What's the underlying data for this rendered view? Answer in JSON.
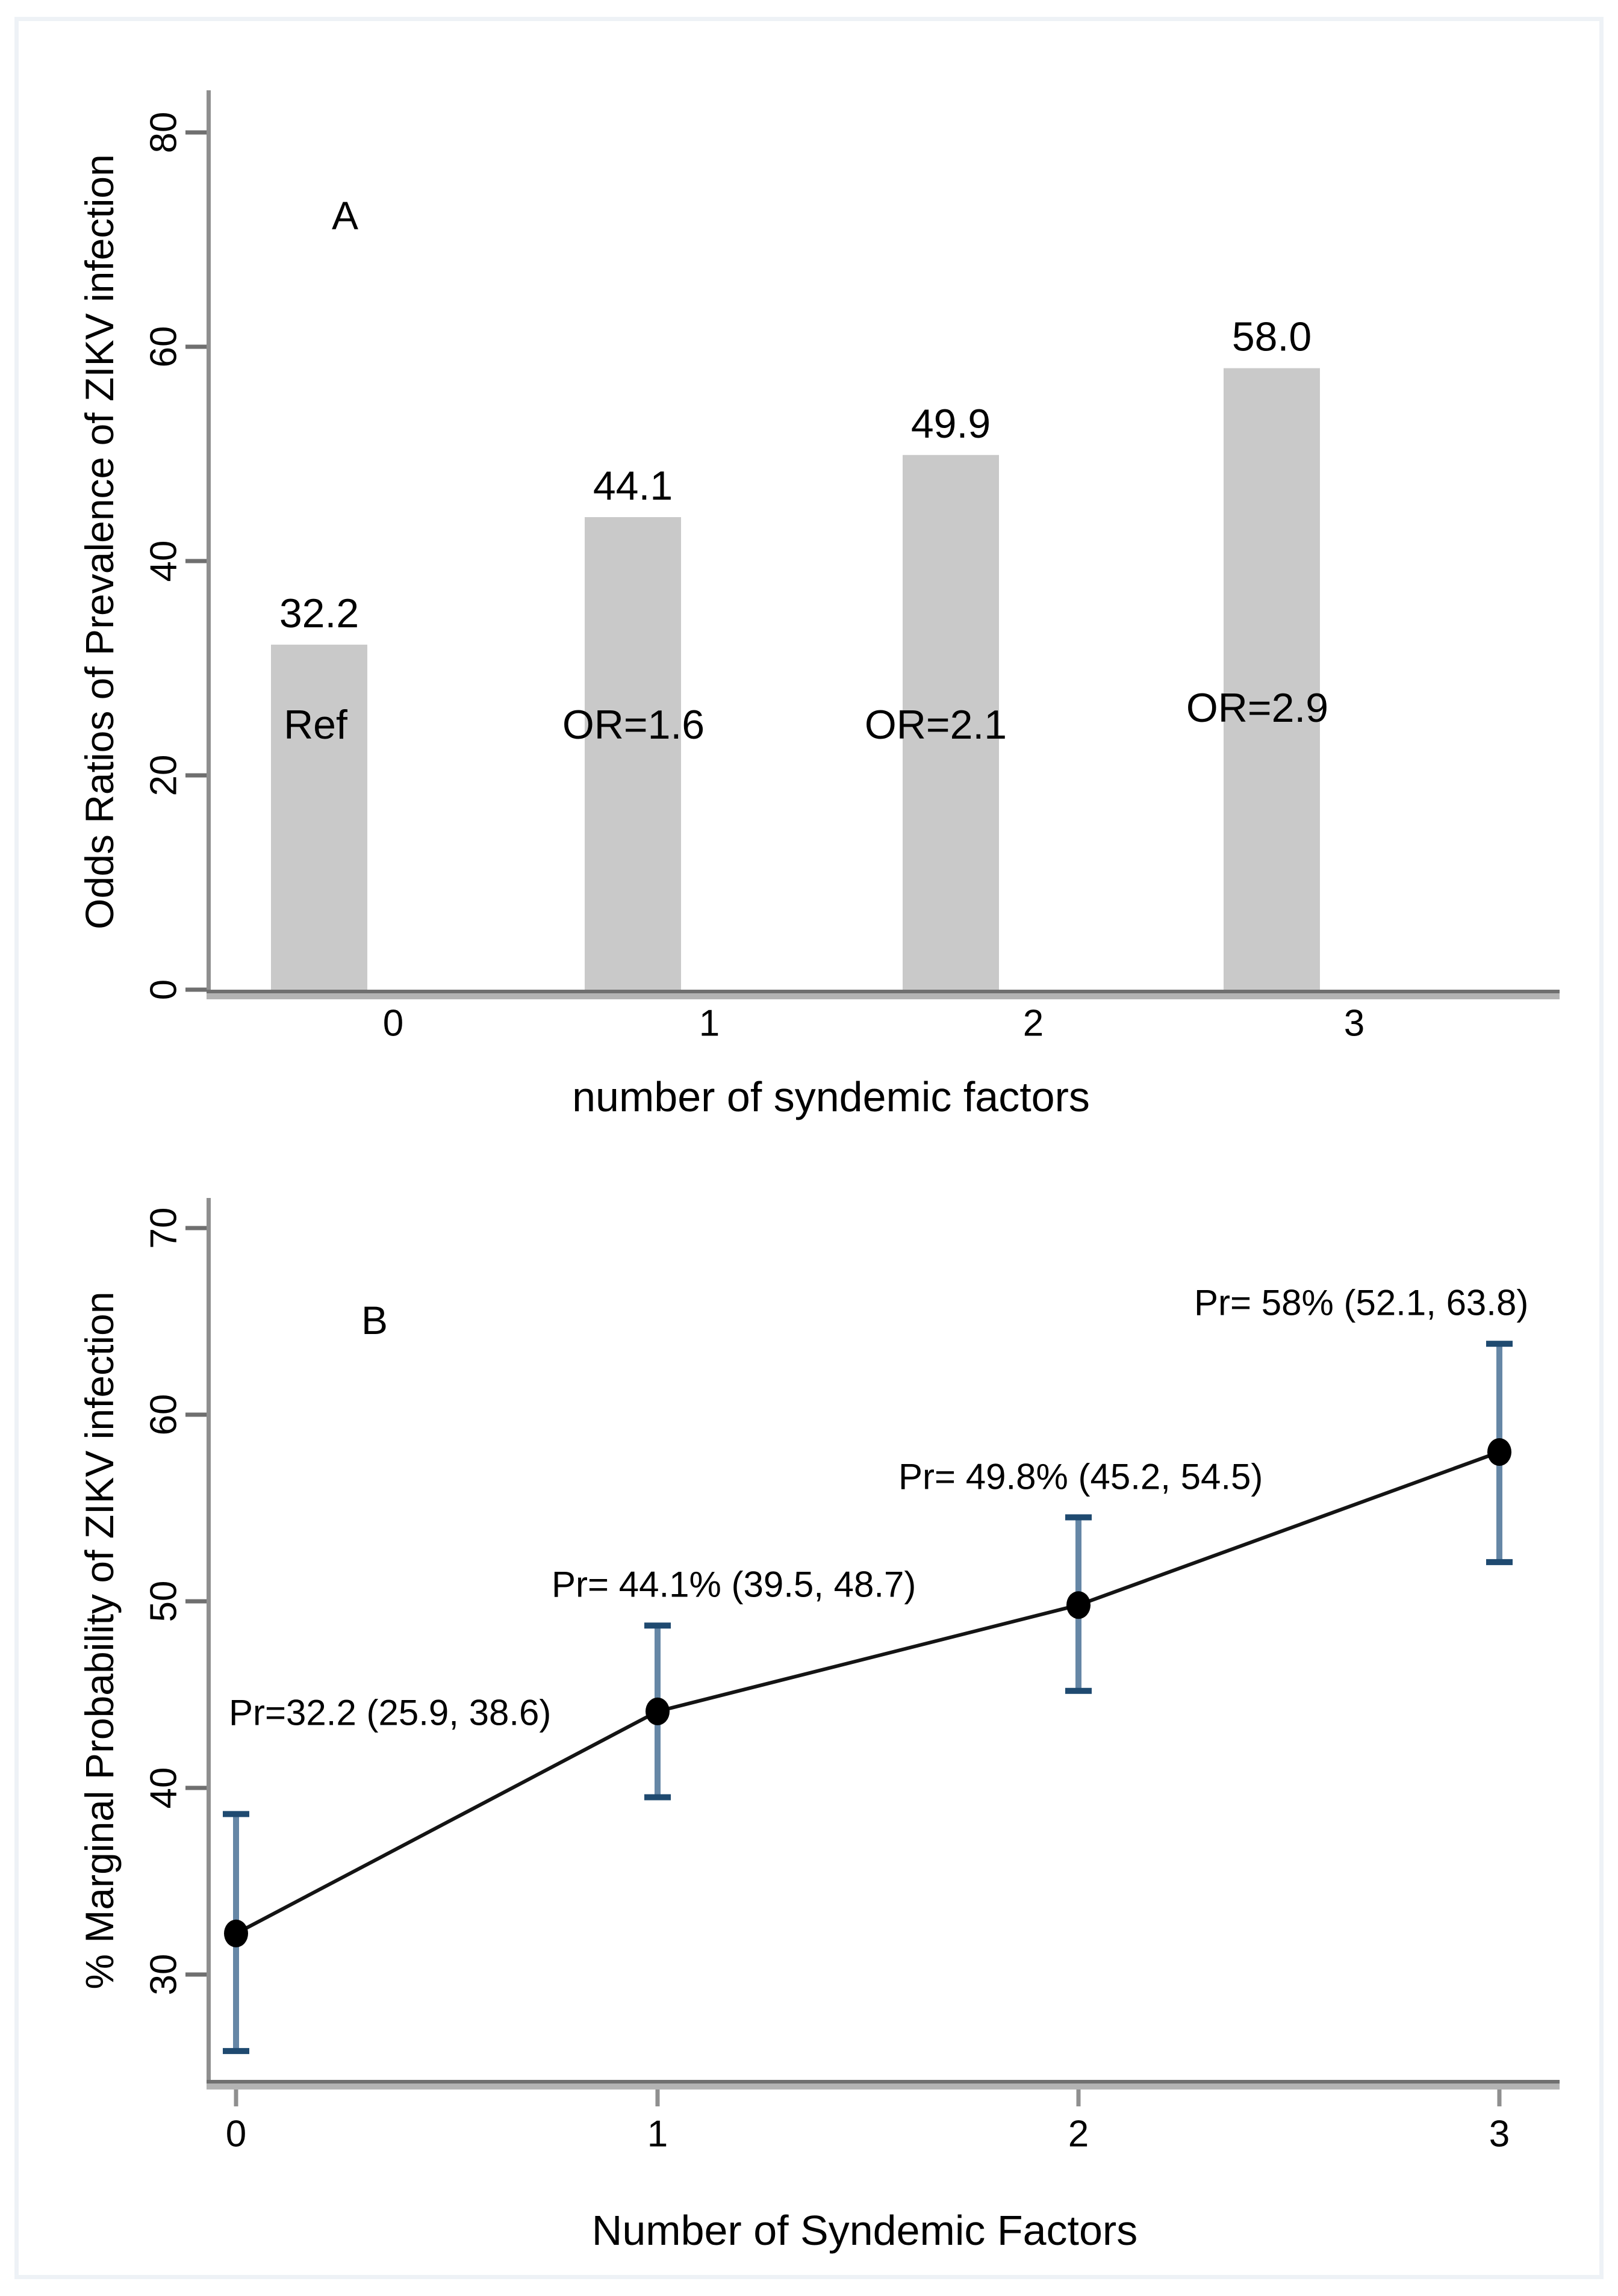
{
  "figure": {
    "panel_a_label": "A",
    "panel_b_label": "B"
  },
  "chart_data": [
    {
      "type": "bar",
      "panel": "A",
      "title": "",
      "xlabel": "number of syndemic factors",
      "ylabel": "Odds Ratios of Prevalence of ZIKV infection",
      "categories": [
        "0",
        "1",
        "2",
        "3"
      ],
      "values": [
        32.2,
        44.1,
        49.9,
        58.0
      ],
      "value_labels": [
        "32.2",
        "44.1",
        "49.9",
        "58.0"
      ],
      "bar_annotations": [
        "Ref",
        "OR=1.6",
        "OR=2.1",
        "OR=2.9"
      ],
      "yticks": [
        "0",
        "20",
        "40",
        "60",
        "80"
      ],
      "ylim": [
        0,
        84
      ],
      "grid": false,
      "legend": null,
      "bar_color": "#c9c9c9"
    },
    {
      "type": "line",
      "panel": "B",
      "title": "",
      "xlabel": "Number of Syndemic Factors",
      "ylabel": "% Marginal Probability of ZIKV infection",
      "x": [
        0,
        1,
        2,
        3
      ],
      "xtick_labels": [
        "0",
        "1",
        "2",
        "3"
      ],
      "series": [
        {
          "name": "% marginal probability of ZIKV infection",
          "values": [
            32.2,
            44.1,
            49.8,
            58.0
          ],
          "ci_low": [
            25.9,
            39.5,
            45.2,
            52.1
          ],
          "ci_high": [
            38.6,
            48.7,
            54.5,
            63.8
          ]
        }
      ],
      "point_annotations": [
        "Pr=32.2 (25.9, 38.6)",
        "Pr= 44.1% (39.5, 48.7)",
        "Pr= 49.8% (45.2, 54.5)",
        "Pr= 58% (52.1, 63.8)"
      ],
      "yticks": [
        "30",
        "40",
        "50",
        "60",
        "70"
      ],
      "ylim": [
        24,
        73
      ],
      "grid": false,
      "legend": null,
      "colors": {
        "line": "#141414",
        "marker": "#000000",
        "ci_stem": "#6687a6",
        "ci_cap": "#1f4a70"
      }
    }
  ]
}
